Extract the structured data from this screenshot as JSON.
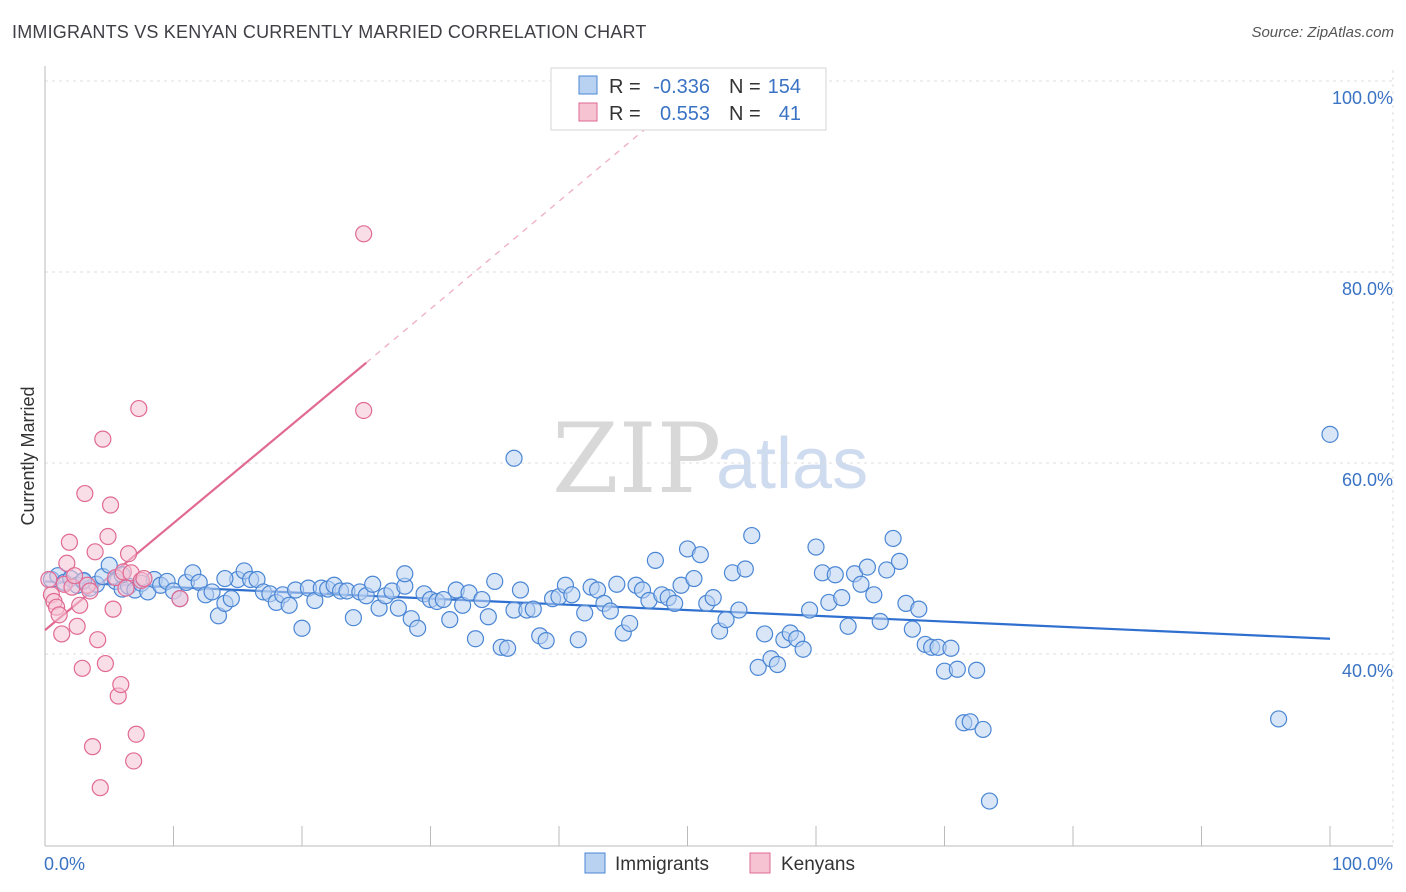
{
  "title": "IMMIGRANTS VS KENYAN CURRENTLY MARRIED CORRELATION CHART",
  "source": "Source: ZipAtlas.com",
  "watermark": {
    "zip": "ZIP",
    "atlas": "atlas"
  },
  "colors": {
    "blue": "#4a86d4",
    "blue_fill": "#b9d2f2",
    "pink": "#e06a93",
    "pink_fill": "#f6c3d3",
    "tick": "#3a73c4",
    "grid": "#dddddd"
  },
  "legend": {
    "rows": [
      {
        "r_label": "R =",
        "r_value": "-0.336",
        "n_label": "N =",
        "n_value": "154"
      },
      {
        "r_label": "R =",
        "r_value": "0.553",
        "n_label": "N =",
        "n_value": "41"
      }
    ]
  },
  "chart_data": {
    "type": "scatter",
    "title": "IMMIGRANTS VS KENYAN CURRENTLY MARRIED CORRELATION CHART",
    "xlabel": "",
    "ylabel": "Currently Married",
    "xlim": [
      0,
      100
    ],
    "ylim": [
      20,
      104
    ],
    "x_tick_labels": [
      "0.0%",
      "100.0%"
    ],
    "y_ticks": [
      40,
      60,
      80,
      100
    ],
    "y_tick_labels": [
      "40.0%",
      "60.0%",
      "80.0%",
      "100.0%"
    ],
    "grid": true,
    "series": [
      {
        "name": "Immigrants",
        "r": -0.336,
        "n": 154,
        "trend": {
          "x": [
            0,
            100
          ],
          "y": [
            47.6,
            41.6
          ],
          "style": "solid"
        },
        "points": [
          [
            0.5,
            47.8
          ],
          [
            1,
            48.2
          ],
          [
            1.5,
            47.5
          ],
          [
            2,
            47.9
          ],
          [
            2.5,
            47.2
          ],
          [
            3,
            47.6
          ],
          [
            3.5,
            46.9
          ],
          [
            4,
            47.3
          ],
          [
            4.5,
            48.1
          ],
          [
            5,
            49.3
          ],
          [
            5.5,
            47.6
          ],
          [
            6,
            46.8
          ],
          [
            6.5,
            47.1
          ],
          [
            7,
            46.7
          ],
          [
            7.5,
            47.4
          ],
          [
            8,
            46.5
          ],
          [
            8.5,
            47.8
          ],
          [
            9,
            47.2
          ],
          [
            9.5,
            47.6
          ],
          [
            10,
            46.6
          ],
          [
            10.5,
            45.8
          ],
          [
            11,
            47.5
          ],
          [
            11.5,
            48.5
          ],
          [
            12,
            47.5
          ],
          [
            12.5,
            46.2
          ],
          [
            13,
            46.5
          ],
          [
            13.5,
            44.0
          ],
          [
            14,
            45.3
          ],
          [
            14.5,
            45.8
          ],
          [
            15,
            47.8
          ],
          [
            15.5,
            48.7
          ],
          [
            16,
            47.8
          ],
          [
            16.5,
            47.8
          ],
          [
            17,
            46.5
          ],
          [
            17.5,
            46.3
          ],
          [
            18,
            45.4
          ],
          [
            18.5,
            46.2
          ],
          [
            19,
            45.1
          ],
          [
            19.5,
            46.7
          ],
          [
            20,
            42.7
          ],
          [
            20.5,
            46.9
          ],
          [
            21,
            45.6
          ],
          [
            21.5,
            46.9
          ],
          [
            22,
            46.8
          ],
          [
            22.5,
            47.2
          ],
          [
            23,
            46.6
          ],
          [
            23.5,
            46.6
          ],
          [
            24,
            43.8
          ],
          [
            24.5,
            46.5
          ],
          [
            25,
            46.1
          ],
          [
            25.5,
            47.3
          ],
          [
            26,
            44.8
          ],
          [
            26.5,
            46.1
          ],
          [
            27,
            46.6
          ],
          [
            27.5,
            44.8
          ],
          [
            28,
            47.1
          ],
          [
            28.5,
            43.7
          ],
          [
            29,
            42.7
          ],
          [
            29.5,
            46.3
          ],
          [
            30,
            45.7
          ],
          [
            30.5,
            45.5
          ],
          [
            31,
            45.7
          ],
          [
            31.5,
            43.6
          ],
          [
            32,
            46.7
          ],
          [
            32.5,
            45.1
          ],
          [
            33,
            46.4
          ],
          [
            33.5,
            41.6
          ],
          [
            34,
            45.7
          ],
          [
            34.5,
            43.9
          ],
          [
            35,
            47.6
          ],
          [
            35.5,
            40.7
          ],
          [
            36,
            40.6
          ],
          [
            36.5,
            44.6
          ],
          [
            37,
            46.7
          ],
          [
            37.5,
            44.6
          ],
          [
            38,
            44.7
          ],
          [
            38.5,
            41.9
          ],
          [
            39,
            41.4
          ],
          [
            39.5,
            45.8
          ],
          [
            40,
            46.0
          ],
          [
            40.5,
            47.2
          ],
          [
            41,
            46.2
          ],
          [
            41.5,
            41.5
          ],
          [
            42,
            44.3
          ],
          [
            42.5,
            47.0
          ],
          [
            43,
            46.7
          ],
          [
            43.5,
            45.3
          ],
          [
            44,
            44.5
          ],
          [
            44.5,
            47.3
          ],
          [
            45,
            42.2
          ],
          [
            45.5,
            43.2
          ],
          [
            46,
            47.2
          ],
          [
            46.5,
            46.7
          ],
          [
            47,
            45.6
          ],
          [
            47.5,
            49.8
          ],
          [
            48,
            46.2
          ],
          [
            48.5,
            45.9
          ],
          [
            49,
            45.3
          ],
          [
            49.5,
            47.2
          ],
          [
            50,
            51.0
          ],
          [
            50.5,
            47.9
          ],
          [
            51,
            50.4
          ],
          [
            51.5,
            45.3
          ],
          [
            52,
            45.9
          ],
          [
            52.5,
            42.4
          ],
          [
            53,
            43.6
          ],
          [
            53.5,
            48.5
          ],
          [
            54,
            44.6
          ],
          [
            54.5,
            48.9
          ],
          [
            55,
            52.4
          ],
          [
            55.5,
            38.6
          ],
          [
            56,
            42.1
          ],
          [
            56.5,
            39.5
          ],
          [
            57,
            38.9
          ],
          [
            57.5,
            41.5
          ],
          [
            58,
            42.2
          ],
          [
            58.5,
            41.6
          ],
          [
            59,
            40.5
          ],
          [
            59.5,
            44.6
          ],
          [
            60,
            51.2
          ],
          [
            60.5,
            48.5
          ],
          [
            61,
            45.4
          ],
          [
            61.5,
            48.3
          ],
          [
            62,
            45.9
          ],
          [
            62.5,
            42.9
          ],
          [
            63,
            48.4
          ],
          [
            63.5,
            47.3
          ],
          [
            64,
            49.1
          ],
          [
            64.5,
            46.2
          ],
          [
            65,
            43.4
          ],
          [
            65.5,
            48.8
          ],
          [
            66,
            52.1
          ],
          [
            66.5,
            49.7
          ],
          [
            67,
            45.3
          ],
          [
            67.5,
            42.6
          ],
          [
            68,
            44.7
          ],
          [
            68.5,
            41.0
          ],
          [
            69,
            40.7
          ],
          [
            69.5,
            40.7
          ],
          [
            70,
            38.2
          ],
          [
            70.5,
            40.6
          ],
          [
            71,
            38.4
          ],
          [
            71.5,
            32.8
          ],
          [
            72,
            32.9
          ],
          [
            72.5,
            38.3
          ],
          [
            73,
            32.1
          ],
          [
            73.5,
            24.6
          ],
          [
            36.5,
            60.5
          ],
          [
            96,
            33.2
          ],
          [
            100,
            63.0
          ],
          [
            3,
            47.7
          ],
          [
            6,
            48.3
          ],
          [
            14,
            47.9
          ],
          [
            28,
            48.4
          ]
        ]
      },
      {
        "name": "Kenyans",
        "r": 0.553,
        "n": 41,
        "trend": {
          "x": [
            0,
            25
          ],
          "y": [
            42.5,
            70.5
          ],
          "style": "solid"
        },
        "trend_extension": {
          "x": [
            25,
            47
          ],
          "y": [
            70.5,
            95.3
          ],
          "style": "dashed"
        },
        "points": [
          [
            0.3,
            47.8
          ],
          [
            0.5,
            46.2
          ],
          [
            0.7,
            45.5
          ],
          [
            0.9,
            44.9
          ],
          [
            1.1,
            44.1
          ],
          [
            1.3,
            42.1
          ],
          [
            1.5,
            47.3
          ],
          [
            1.7,
            49.5
          ],
          [
            1.9,
            51.7
          ],
          [
            2.1,
            47.0
          ],
          [
            2.3,
            48.2
          ],
          [
            2.5,
            42.9
          ],
          [
            2.7,
            45.1
          ],
          [
            2.9,
            38.5
          ],
          [
            3.1,
            56.8
          ],
          [
            3.3,
            47.2
          ],
          [
            3.5,
            46.6
          ],
          [
            3.7,
            30.3
          ],
          [
            3.9,
            50.7
          ],
          [
            4.1,
            41.5
          ],
          [
            4.3,
            26.0
          ],
          [
            4.5,
            62.5
          ],
          [
            4.7,
            39.0
          ],
          [
            4.9,
            52.3
          ],
          [
            5.1,
            55.6
          ],
          [
            5.3,
            44.7
          ],
          [
            5.5,
            48.0
          ],
          [
            5.7,
            35.6
          ],
          [
            5.9,
            36.8
          ],
          [
            6.1,
            48.6
          ],
          [
            6.3,
            46.9
          ],
          [
            6.5,
            50.5
          ],
          [
            6.7,
            48.5
          ],
          [
            6.9,
            28.8
          ],
          [
            7.1,
            31.6
          ],
          [
            7.3,
            65.7
          ],
          [
            7.5,
            47.7
          ],
          [
            7.7,
            47.9
          ],
          [
            10.5,
            45.8
          ],
          [
            24.8,
            65.5
          ],
          [
            24.8,
            84.0
          ]
        ]
      }
    ]
  },
  "bottom_legend": {
    "items": [
      {
        "label": "Immigrants"
      },
      {
        "label": "Kenyans"
      }
    ]
  }
}
